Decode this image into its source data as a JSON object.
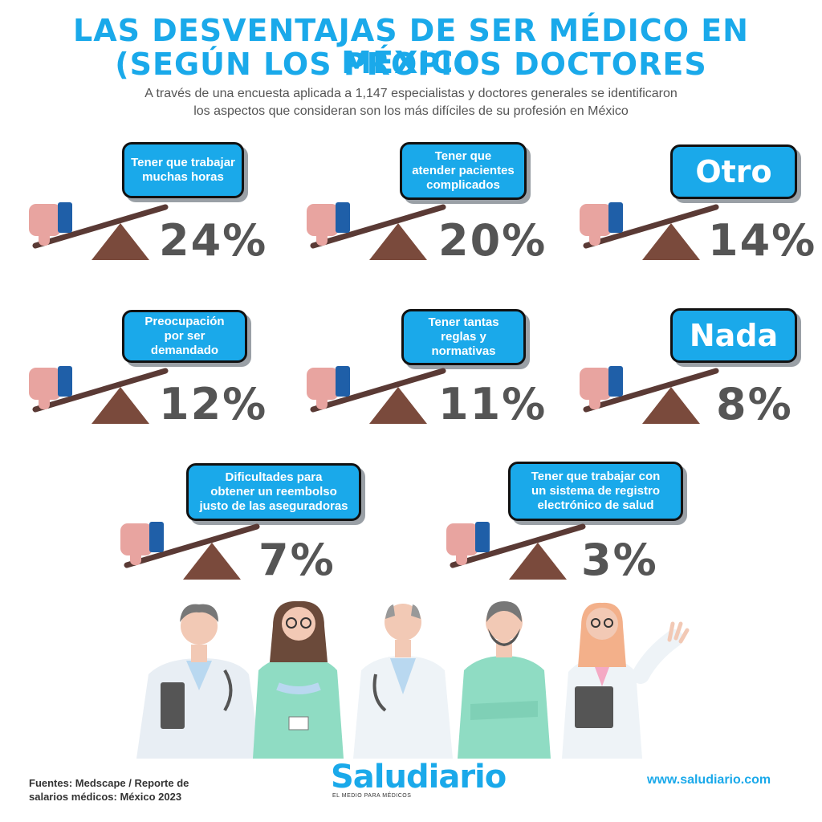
{
  "header": {
    "title_line1": "LAS DESVENTAJAS DE SER MÉDICO EN MÉXICO",
    "title_line2": "(SEGÚN LOS PROPIOS DOCTORES",
    "subtitle_line1": "A través de una encuesta aplicada a 1,147 especialistas y doctores generales se identificaron",
    "subtitle_line2": "los aspectos que consideran son los más difíciles de su profesión en México"
  },
  "items": [
    {
      "label": "Tener que trabajar\nmuchas horas",
      "value": "24%"
    },
    {
      "label": "Tener que\natender pacientes\ncomplicados",
      "value": "20%"
    },
    {
      "label": "Otro",
      "value": "14%"
    },
    {
      "label": "Preocupación\npor ser demandado",
      "value": "12%"
    },
    {
      "label": "Tener tantas\nreglas y\nnormativas",
      "value": "11%"
    },
    {
      "label": "Nada",
      "value": "8%"
    },
    {
      "label": "Dificultades para\nobtener un reembolso\njusto de las aseguradoras",
      "value": "7%"
    },
    {
      "label": "Tener que trabajar con\nun sistema de registro\nelectrónico de salud",
      "value": "3%"
    }
  ],
  "footer": {
    "sources_line1": "Fuentes: Medscape / Reporte de",
    "sources_line2": "salarios médicos: México 2023",
    "logo": "Saludiario",
    "logo_tagline": "EL MEDIO PARA MÉDICOS",
    "website": "www.saludiario.com"
  },
  "colors": {
    "accent": "#1aa9ea",
    "text_gray": "#555555",
    "plank": "#5a3a35",
    "fulcrum": "#7a4a3c",
    "hand": "#e8a4a0",
    "cuff": "#1f5fa8"
  }
}
